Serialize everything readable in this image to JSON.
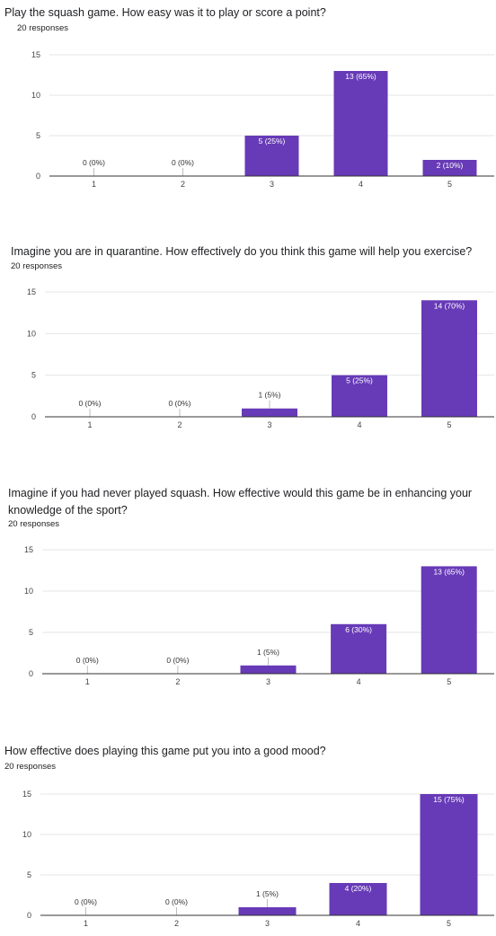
{
  "colors": {
    "bar": "#673ab7",
    "label_inside": "#ffffff",
    "label_outside": "#333333"
  },
  "questions": [
    {
      "title_lines": [
        "Play the squash game. How easy was it to play or score a point?"
      ],
      "subtitle": "20 responses"
    },
    {
      "title_lines": [
        "Imagine you are in quarantine. How effectively do you think this game will help you exercise?"
      ],
      "subtitle": "20 responses"
    },
    {
      "title_lines": [
        "Imagine if you had never played squash. How effective would this game be in enhancing your",
        "knowledge of the sport?"
      ],
      "subtitle": "20 responses"
    },
    {
      "title_lines": [
        "How effective does playing this game put you into a good mood?"
      ],
      "subtitle": "20 responses"
    }
  ],
  "chart_data": [
    {
      "type": "bar",
      "categories": [
        "1",
        "2",
        "3",
        "4",
        "5"
      ],
      "values": [
        0,
        0,
        5,
        13,
        2
      ],
      "labels": [
        "0 (0%)",
        "0 (0%)",
        "5 (25%)",
        "13 (65%)",
        "2 (10%)"
      ],
      "ylim": [
        0,
        15
      ],
      "yticks": [
        "0",
        "5",
        "10",
        "15"
      ],
      "grid": true
    },
    {
      "type": "bar",
      "categories": [
        "1",
        "2",
        "3",
        "4",
        "5"
      ],
      "values": [
        0,
        0,
        1,
        5,
        14
      ],
      "labels": [
        "0 (0%)",
        "0 (0%)",
        "1 (5%)",
        "5 (25%)",
        "14 (70%)"
      ],
      "ylim": [
        0,
        15
      ],
      "yticks": [
        "0",
        "5",
        "10",
        "15"
      ],
      "grid": true
    },
    {
      "type": "bar",
      "categories": [
        "1",
        "2",
        "3",
        "4",
        "5"
      ],
      "values": [
        0,
        0,
        1,
        6,
        13
      ],
      "labels": [
        "0 (0%)",
        "0 (0%)",
        "1 (5%)",
        "6 (30%)",
        "13 (65%)"
      ],
      "ylim": [
        0,
        15
      ],
      "yticks": [
        "0",
        "5",
        "10",
        "15"
      ],
      "grid": true
    },
    {
      "type": "bar",
      "categories": [
        "1",
        "2",
        "3",
        "4",
        "5"
      ],
      "values": [
        0,
        0,
        1,
        4,
        15
      ],
      "labels": [
        "0 (0%)",
        "0 (0%)",
        "1 (5%)",
        "4 (20%)",
        "15 (75%)"
      ],
      "ylim": [
        0,
        15
      ],
      "yticks": [
        "0",
        "5",
        "10",
        "15"
      ],
      "grid": true
    }
  ]
}
